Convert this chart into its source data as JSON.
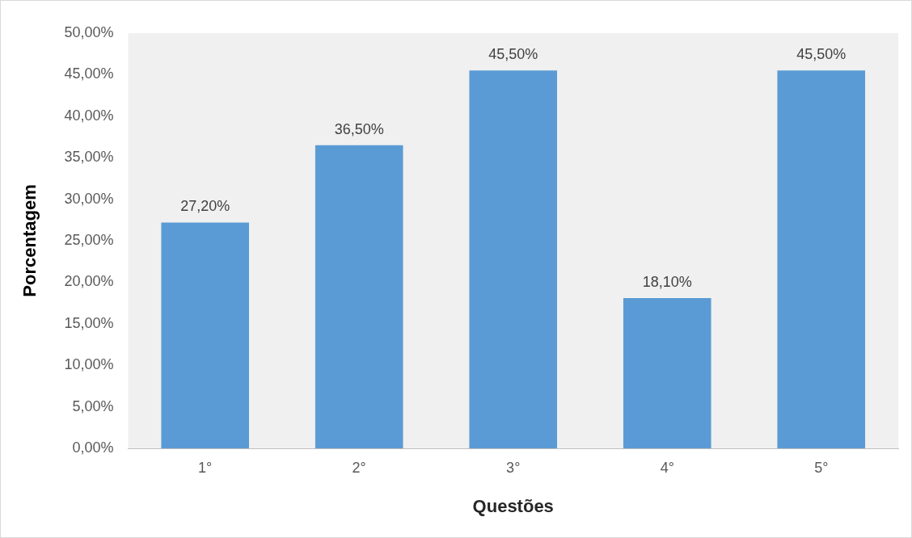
{
  "chart_data": {
    "type": "bar",
    "xlabel": "Questões",
    "ylabel": "Porcentagem",
    "categories": [
      "1°",
      "2°",
      "3°",
      "4°",
      "5°"
    ],
    "values": [
      27.2,
      36.5,
      45.5,
      18.1,
      45.5
    ],
    "value_labels": [
      "27,20%",
      "36,50%",
      "45,50%",
      "18,10%",
      "45,50%"
    ],
    "color": "#5b9bd5",
    "ylim": [
      0,
      50
    ],
    "yticks": [
      {
        "value": 0,
        "label": "0,00%"
      },
      {
        "value": 5,
        "label": "5,00%"
      },
      {
        "value": 10,
        "label": "10,00%"
      },
      {
        "value": 15,
        "label": "15,00%"
      },
      {
        "value": 20,
        "label": "20,00%"
      },
      {
        "value": 25,
        "label": "25,00%"
      },
      {
        "value": 30,
        "label": "30,00%"
      },
      {
        "value": 35,
        "label": "35,00%"
      },
      {
        "value": 40,
        "label": "40,00%"
      },
      {
        "value": 45,
        "label": "45,00%"
      },
      {
        "value": 50,
        "label": "50,00%"
      }
    ],
    "grid": false,
    "legend": false
  }
}
